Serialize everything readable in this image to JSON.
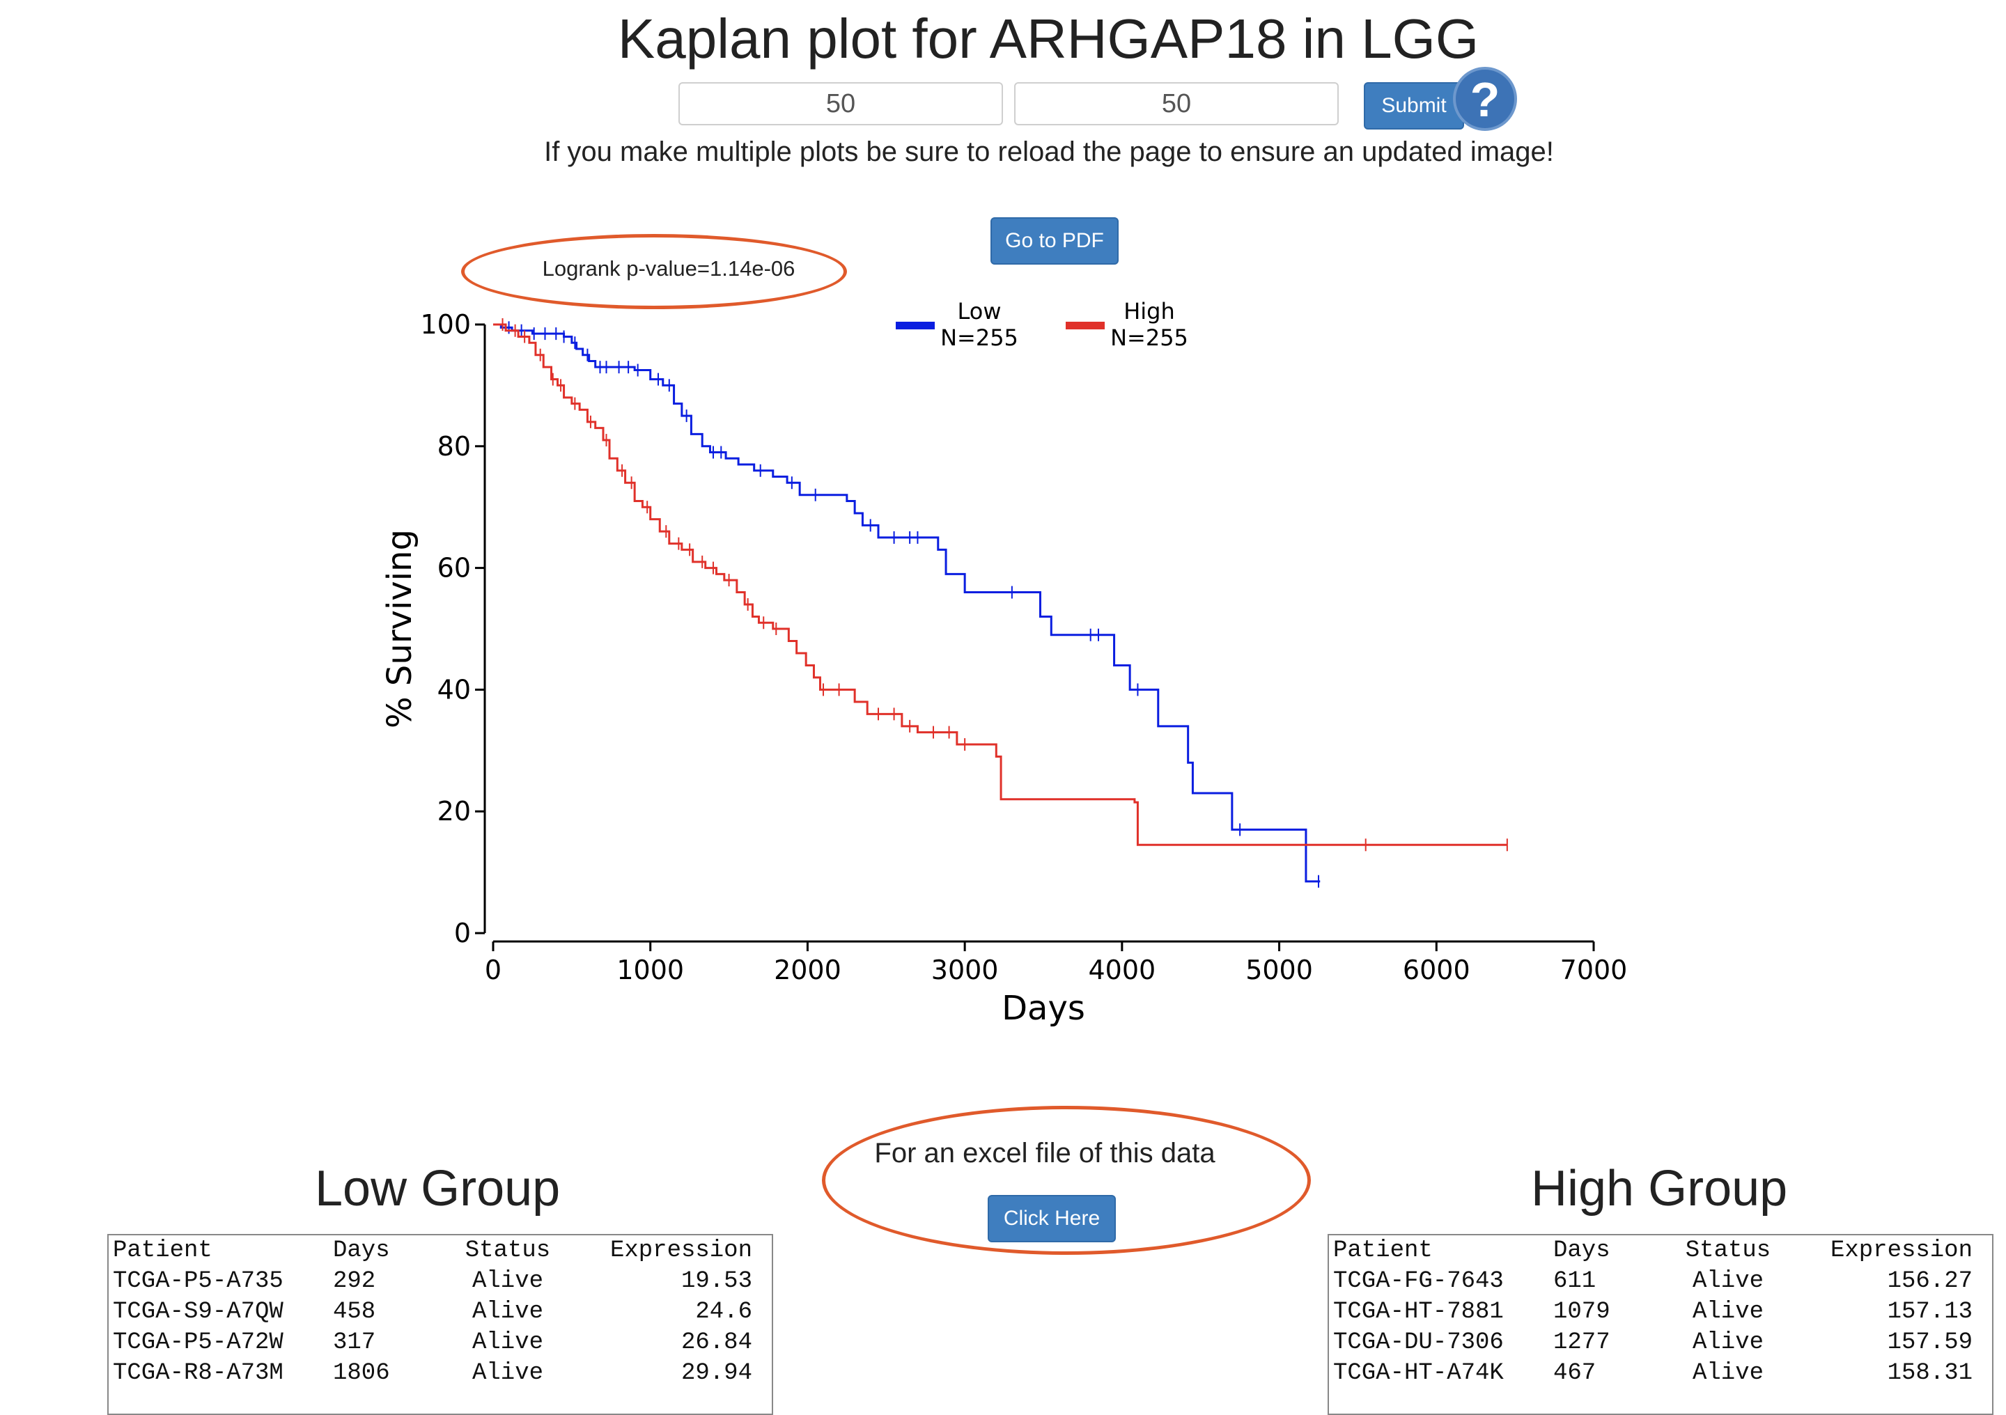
{
  "page": {
    "title": "Kaplan plot for ARHGAP18 in LGG",
    "low_percentile_input": "50",
    "high_percentile_input": "50",
    "submit_label": "Submit",
    "help_icon": "?",
    "reload_note": "If you make multiple plots be sure to reload the page to ensure an updated image!",
    "pdf_button_label": "Go to PDF",
    "excel_text": "For an excel file of this data",
    "excel_button_label": "Click Here",
    "annotation_color": "#e05a2b",
    "button_color": "#3f7ebf"
  },
  "chart_data": {
    "type": "line",
    "title": "",
    "annotation": "Logrank p-value=1.14e-06",
    "xlabel": "Days",
    "ylabel": "% Surviving",
    "xlim": [
      0,
      7000
    ],
    "ylim": [
      0,
      100
    ],
    "xticks": [
      0,
      1000,
      2000,
      3000,
      4000,
      5000,
      6000,
      7000
    ],
    "yticks": [
      0,
      20,
      40,
      60,
      80,
      100
    ],
    "grid": false,
    "legend_position": "top-center",
    "series": [
      {
        "name": "Low",
        "n_label": "N=255",
        "color": "#0a1ee0",
        "steps": [
          [
            0,
            100
          ],
          [
            50,
            99.5
          ],
          [
            120,
            99
          ],
          [
            250,
            98.5
          ],
          [
            450,
            98
          ],
          [
            500,
            97
          ],
          [
            530,
            96
          ],
          [
            570,
            95
          ],
          [
            610,
            94
          ],
          [
            650,
            93
          ],
          [
            900,
            92.5
          ],
          [
            1000,
            91
          ],
          [
            1080,
            90
          ],
          [
            1150,
            87
          ],
          [
            1200,
            85
          ],
          [
            1260,
            82
          ],
          [
            1330,
            80
          ],
          [
            1380,
            79
          ],
          [
            1480,
            78
          ],
          [
            1560,
            77
          ],
          [
            1660,
            76
          ],
          [
            1780,
            75
          ],
          [
            1870,
            74
          ],
          [
            1950,
            72
          ],
          [
            2250,
            71
          ],
          [
            2300,
            69
          ],
          [
            2350,
            67
          ],
          [
            2450,
            65
          ],
          [
            2830,
            63
          ],
          [
            2880,
            59
          ],
          [
            3000,
            56
          ],
          [
            3480,
            52
          ],
          [
            3550,
            49
          ],
          [
            3950,
            44
          ],
          [
            4050,
            40
          ],
          [
            4230,
            34
          ],
          [
            4420,
            28
          ],
          [
            4450,
            23
          ],
          [
            4700,
            17
          ],
          [
            5170,
            8.5
          ],
          [
            5260,
            8.5
          ]
        ],
        "censor_days": [
          100,
          180,
          260,
          330,
          400,
          450,
          520,
          600,
          680,
          720,
          800,
          860,
          920,
          1050,
          1120,
          1230,
          1400,
          1450,
          1700,
          1900,
          2050,
          2400,
          2550,
          2650,
          2700,
          3300,
          3800,
          3850,
          4100,
          4750,
          5250
        ]
      },
      {
        "name": "High",
        "n_label": "N=255",
        "color": "#e0312a",
        "steps": [
          [
            0,
            100
          ],
          [
            80,
            99
          ],
          [
            160,
            98
          ],
          [
            230,
            97
          ],
          [
            270,
            95
          ],
          [
            320,
            93
          ],
          [
            370,
            91
          ],
          [
            410,
            90
          ],
          [
            450,
            88
          ],
          [
            500,
            87
          ],
          [
            550,
            86
          ],
          [
            600,
            84
          ],
          [
            650,
            83
          ],
          [
            700,
            81
          ],
          [
            740,
            78
          ],
          [
            790,
            76
          ],
          [
            840,
            74
          ],
          [
            900,
            71
          ],
          [
            950,
            70
          ],
          [
            1000,
            68
          ],
          [
            1060,
            66
          ],
          [
            1120,
            64
          ],
          [
            1200,
            63
          ],
          [
            1270,
            61
          ],
          [
            1350,
            60
          ],
          [
            1420,
            59
          ],
          [
            1470,
            58
          ],
          [
            1550,
            56
          ],
          [
            1600,
            54
          ],
          [
            1650,
            52
          ],
          [
            1690,
            51
          ],
          [
            1780,
            50
          ],
          [
            1880,
            48
          ],
          [
            1930,
            46
          ],
          [
            1990,
            44
          ],
          [
            2040,
            42
          ],
          [
            2080,
            40
          ],
          [
            2300,
            38
          ],
          [
            2380,
            36
          ],
          [
            2600,
            34
          ],
          [
            2700,
            33
          ],
          [
            2950,
            31
          ],
          [
            3200,
            29
          ],
          [
            3230,
            22
          ],
          [
            4080,
            21.5
          ],
          [
            4100,
            14.5
          ],
          [
            6450,
            14.5
          ]
        ],
        "censor_days": [
          60,
          140,
          200,
          300,
          380,
          430,
          520,
          620,
          720,
          820,
          880,
          980,
          1100,
          1180,
          1250,
          1330,
          1400,
          1500,
          1620,
          1720,
          1800,
          2100,
          2200,
          2450,
          2550,
          2650,
          2800,
          2900,
          3000,
          5550,
          6450
        ]
      }
    ]
  },
  "tables": {
    "low": {
      "title": "Low Group",
      "columns": [
        "Patient",
        "Days",
        "Status",
        "Expression"
      ],
      "rows": [
        [
          "TCGA-P5-A735",
          "292",
          "Alive",
          "19.53"
        ],
        [
          "TCGA-S9-A7QW",
          "458",
          "Alive",
          "24.6"
        ],
        [
          "TCGA-P5-A72W",
          "317",
          "Alive",
          "26.84"
        ],
        [
          "TCGA-R8-A73M",
          "1806",
          "Alive",
          "29.94"
        ]
      ]
    },
    "high": {
      "title": "High Group",
      "columns": [
        "Patient",
        "Days",
        "Status",
        "Expression"
      ],
      "rows": [
        [
          "TCGA-FG-7643",
          "611",
          "Alive",
          "156.27"
        ],
        [
          "TCGA-HT-7881",
          "1079",
          "Alive",
          "157.13"
        ],
        [
          "TCGA-DU-7306",
          "1277",
          "Alive",
          "157.59"
        ],
        [
          "TCGA-HT-A74K",
          "467",
          "Alive",
          "158.31"
        ]
      ]
    }
  }
}
